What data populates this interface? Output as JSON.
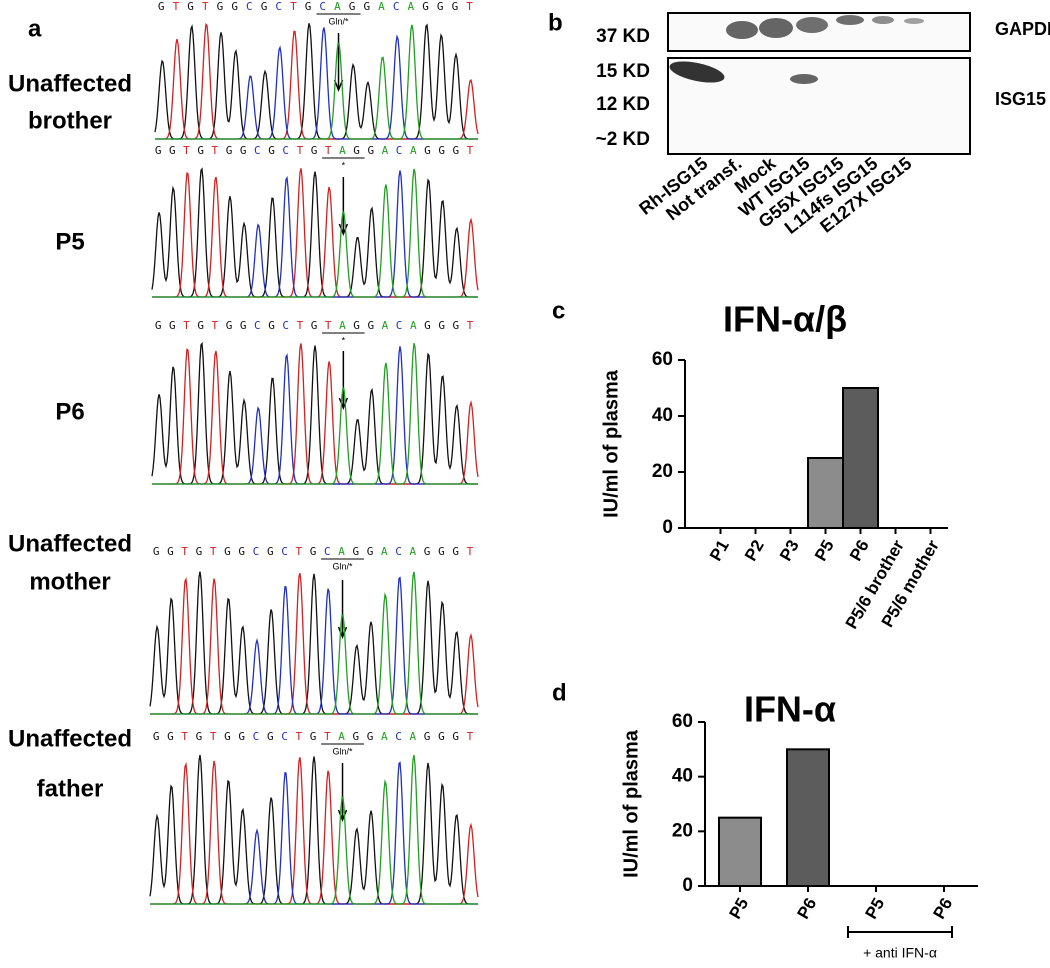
{
  "panel_labels": [
    "a",
    "b",
    "c",
    "d"
  ],
  "sequencing": {
    "tracks": [
      {
        "label": [
          "Unaffected",
          "brother"
        ],
        "sequence": "GTGTGGCGCTGCAGGACAGGGT",
        "annotation": "Gln/*"
      },
      {
        "label": [
          "P5"
        ],
        "sequence": "GGTGTGGCGCTGTAGGACAGGGT",
        "annotation": "*"
      },
      {
        "label": [
          "P6"
        ],
        "sequence": "GGTGTGGCGCTGTAGGACAGGGT",
        "annotation": "*"
      },
      {
        "label": [
          "Unaffected",
          "mother"
        ],
        "sequence": "GGTGTGGCGCTGCAGGACAGGGT",
        "annotation": "Gln/*"
      },
      {
        "label": [
          "Unaffected",
          "father"
        ],
        "sequence": "GGTGTGGCGCTGTAGGACAGGGT",
        "annotation": "Gln/*"
      }
    ]
  },
  "blot": {
    "markers": [
      "37 KD",
      "15 KD",
      "12 KD",
      "~2 KD"
    ],
    "proteins": [
      "GAPDH",
      "ISG15"
    ],
    "lanes": [
      "Rh-ISG15",
      "Not transf.",
      "Mock",
      "WT ISG15",
      "G55X ISG15",
      "L114fs ISG15",
      "E127X ISG15"
    ]
  },
  "chart_data": [
    {
      "type": "bar",
      "title": "IFN-α/β",
      "y_label": "IU/ml of plasma",
      "categories": [
        "P1",
        "P2",
        "P3",
        "P5",
        "P6",
        "P5/6 brother",
        "P5/6 mother"
      ],
      "values": [
        0,
        0,
        0,
        25,
        50,
        0,
        0
      ],
      "colors": [
        "#888888",
        "#888888",
        "#888888",
        "#8c8c8c",
        "#5c5c5c",
        "#888888",
        "#888888"
      ],
      "ylim": [
        0,
        60
      ],
      "yticks": [
        0,
        20,
        40,
        60
      ]
    },
    {
      "type": "bar",
      "title": "IFN-α",
      "y_label": "IU/ml of plasma",
      "categories": [
        "P5",
        "P6",
        "P5",
        "P6"
      ],
      "values": [
        25,
        50,
        0,
        0
      ],
      "colors": [
        "#8c8c8c",
        "#5c5c5c",
        "#8c8c8c",
        "#5c5c5c"
      ],
      "ylim": [
        0,
        60
      ],
      "yticks": [
        0,
        20,
        40,
        60
      ],
      "annotations": [
        "+ anti IFN-α"
      ]
    }
  ]
}
